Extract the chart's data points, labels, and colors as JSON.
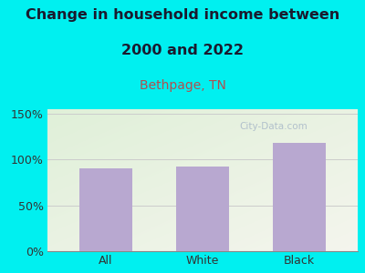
{
  "categories": [
    "All",
    "White",
    "Black"
  ],
  "values": [
    90,
    92,
    118
  ],
  "bar_color": "#b8a8d0",
  "title_line1": "Change in household income between",
  "title_line2": "2000 and 2022",
  "subtitle": "Bethpage, TN",
  "ylim": [
    0,
    155
  ],
  "yticks": [
    0,
    50,
    100,
    150
  ],
  "ytick_labels": [
    "0%",
    "50%",
    "100%",
    "150%"
  ],
  "bg_color": "#00f0f0",
  "plot_bg_top_left": "#dff0d8",
  "plot_bg_bottom_right": "#f5f5ee",
  "title_color": "#1a1a2e",
  "subtitle_color": "#b05050",
  "tick_label_color": "#333333",
  "watermark": "City-Data.com",
  "grid_color": "#cccccc",
  "title_fontsize": 11.5,
  "subtitle_fontsize": 10,
  "tick_fontsize": 9,
  "bar_width": 0.55,
  "bar_edge_color": "none"
}
